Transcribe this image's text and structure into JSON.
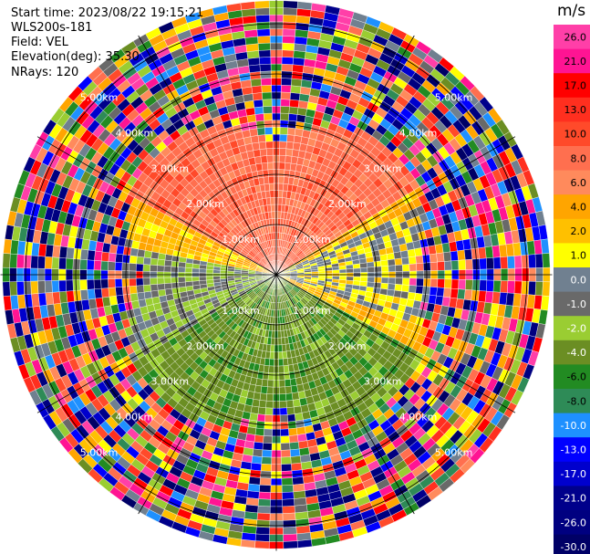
{
  "header": {
    "start_time": "Start time: 2023/08/22 19:15:21",
    "instrument": "WLS200s-181",
    "field": "Field: VEL",
    "elevation": "Elevation(deg): 35.30",
    "nrays": "NRays: 120"
  },
  "colorbar": {
    "unit": "m/s",
    "ticks": [
      "26.0",
      "21.0",
      "17.0",
      "13.0",
      "10.0",
      "8.0",
      "6.0",
      "4.0",
      "2.0",
      "1.0",
      "0.0",
      "-1.0",
      "-2.0",
      "-4.0",
      "-6.0",
      "-8.0",
      "-10.0",
      "-13.0",
      "-17.0",
      "-21.0",
      "-26.0",
      "-30.0"
    ],
    "colors": [
      "#ff3fa8",
      "#ff1493",
      "#ff0000",
      "#ff2f1f",
      "#ff4a2a",
      "#ff6f4f",
      "#ff8a5c",
      "#ffa500",
      "#ffc000",
      "#ffff00",
      "#708090",
      "#696969",
      "#9acd32",
      "#6b8e23",
      "#228b22",
      "#2e8b57",
      "#1e90ff",
      "#0000ff",
      "#0000cd",
      "#00008b",
      "#000080",
      "#000066"
    ]
  },
  "chart_data": {
    "type": "heatmap",
    "title": "",
    "projection": "polar (PPI)",
    "field": "VEL",
    "units": "m/s",
    "nrays": 120,
    "range_rings_km": [
      1,
      2,
      3,
      4,
      5
    ],
    "range_labels": [
      "1.00km",
      "2.00km",
      "3.00km",
      "4.00km",
      "5.00km"
    ],
    "max_range_km": 5.5,
    "clean_range_km": 3.2,
    "value_range": [
      -30,
      26
    ],
    "radial_pattern": [
      {
        "azimuth_from_deg": 285,
        "azimuth_to_deg": 75,
        "velocity_ms": 7
      },
      {
        "azimuth_from_deg": 60,
        "azimuth_to_deg": 120,
        "velocity_ms": 2
      },
      {
        "azimuth_from_deg": 240,
        "azimuth_to_deg": 300,
        "velocity_ms": 2
      },
      {
        "azimuth_from_deg": 65,
        "azimuth_to_deg": 110,
        "velocity_ms": 0
      },
      {
        "azimuth_from_deg": 120,
        "azimuth_to_deg": 240,
        "velocity_ms": -5
      },
      {
        "azimuth_from_deg": 240,
        "azimuth_to_deg": 280,
        "velocity_ms": -2
      }
    ],
    "outer_region": "noise (mixed colors)"
  }
}
